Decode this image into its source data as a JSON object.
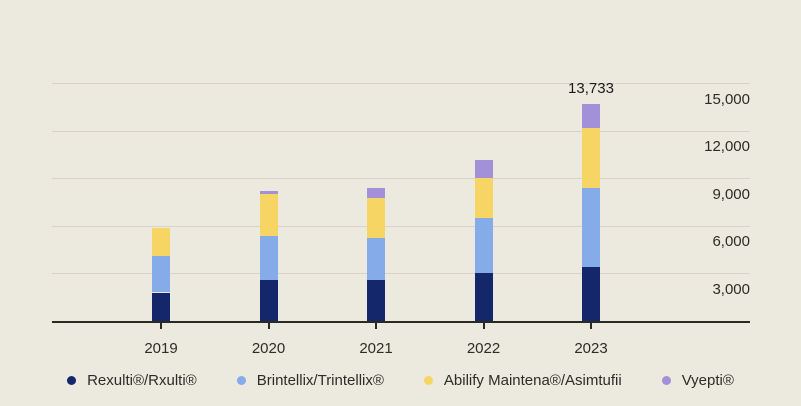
{
  "background_color": "#ece9de",
  "chart_data": {
    "type": "bar",
    "stacked": true,
    "title": "",
    "xlabel": "",
    "ylabel": "",
    "categories": [
      "2019",
      "2020",
      "2021",
      "2022",
      "2023"
    ],
    "series": [
      {
        "name": "Rexulti®/Rxulti®",
        "color": "#14276b",
        "values": [
          1800,
          2580,
          2580,
          3050,
          3390
        ]
      },
      {
        "name": "Brintellix/Trintellix®",
        "color": "#85abe8",
        "values": [
          2330,
          2780,
          2680,
          3430,
          5005
        ]
      },
      {
        "name": "Abilify Maintena®/Asimtufii",
        "color": "#f7d565",
        "values": [
          1760,
          2650,
          2480,
          2570,
          3775
        ]
      },
      {
        "name": "Vyepti®",
        "color": "#a291d8",
        "values": [
          0,
          215,
          675,
          1110,
          1563
        ]
      }
    ],
    "totals": [
      5890,
      8225,
      8415,
      10160,
      13733
    ],
    "annotation": {
      "text": "13,733",
      "category": "2023"
    },
    "y_axis": {
      "side": "right",
      "min": 0,
      "max": 15000,
      "tick_values": [
        3000,
        6000,
        9000,
        12000,
        15000
      ],
      "tick_labels": [
        "3,000",
        "6,000",
        "9,000",
        "12,000",
        "15,000"
      ]
    },
    "grid": true,
    "legend_position": "bottom"
  },
  "colors": {
    "background": "#ece9de",
    "gridline": "#d8d3c5",
    "axis": "#2a2922",
    "text": "#2e2c27"
  }
}
